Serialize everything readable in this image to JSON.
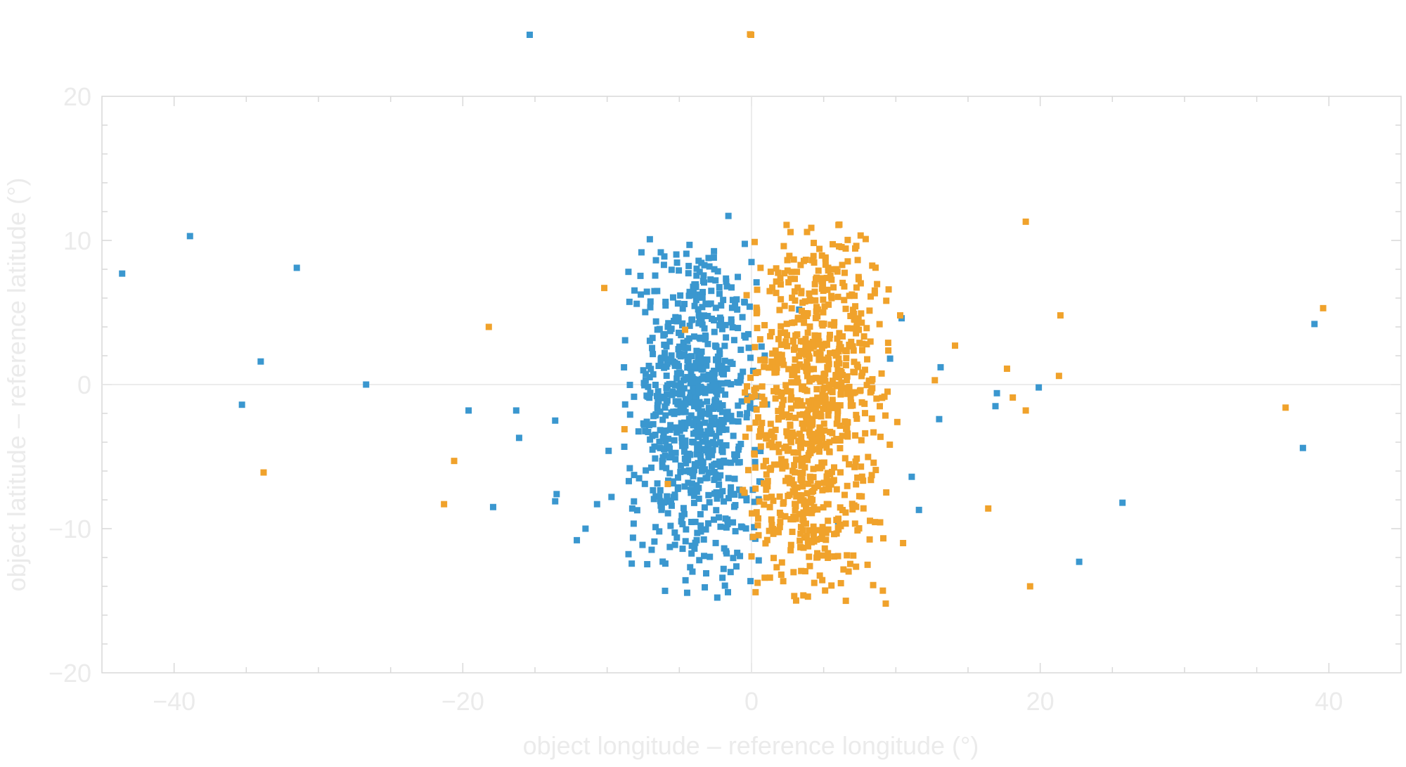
{
  "chart_data": {
    "type": "scatter",
    "xlabel": "object longitude – reference longitude (°)",
    "ylabel": "object latitude – reference latitude (°)",
    "xlim": [
      -45,
      45
    ],
    "ylim": [
      -20,
      20
    ],
    "x_ticks": [
      -40,
      -20,
      0,
      20,
      40
    ],
    "y_ticks": [
      -20,
      -10,
      0,
      10,
      20
    ],
    "x_tick_labels": [
      "−40",
      "−20",
      "0",
      "20",
      "40"
    ],
    "y_tick_labels": [
      "−20",
      "−10",
      "0",
      "10",
      "20"
    ],
    "grid": false,
    "zero_lines": true,
    "legend": "top",
    "series": [
      {
        "color": "#3a97cf",
        "outliers": [
          [
            -43.6,
            7.7
          ],
          [
            -38.9,
            10.3
          ],
          [
            -31.5,
            8.1
          ],
          [
            -34.0,
            1.6
          ],
          [
            -35.3,
            -1.4
          ],
          [
            -26.7,
            0.0
          ],
          [
            -19.6,
            -1.8
          ],
          [
            -16.3,
            -1.8
          ],
          [
            -16.1,
            -3.7
          ],
          [
            -17.9,
            -8.5
          ],
          [
            -13.6,
            -2.5
          ],
          [
            -13.5,
            -7.6
          ],
          [
            -13.6,
            -8.1
          ],
          [
            -11.5,
            -10.0
          ],
          [
            -12.1,
            -10.8
          ],
          [
            -10.7,
            -8.3
          ],
          [
            -9.9,
            -4.6
          ],
          [
            -9.7,
            -7.8
          ],
          [
            -8.5,
            -6.7
          ],
          [
            10.4,
            4.6
          ],
          [
            9.6,
            1.8
          ],
          [
            11.1,
            -6.4
          ],
          [
            11.6,
            -8.7
          ],
          [
            13.1,
            1.2
          ],
          [
            13.0,
            -2.4
          ],
          [
            17.0,
            -0.6
          ],
          [
            16.9,
            -1.5
          ],
          [
            19.9,
            -0.2
          ],
          [
            22.7,
            -12.3
          ],
          [
            25.7,
            -8.2
          ],
          [
            38.2,
            -4.4
          ],
          [
            39.0,
            4.2
          ],
          [
            -1.6,
            11.7
          ],
          [
            0.0,
            8.5
          ],
          [
            6.0,
            -9.5
          ],
          [
            3.3,
            5.2
          ],
          [
            -0.8,
            -11.9
          ],
          [
            0.5,
            -12.2
          ]
        ],
        "cluster": {
          "seed": 7,
          "count": 780,
          "x_min": -9.0,
          "x_max": 1.2,
          "x_mode": -3.8,
          "y_min": -15.4,
          "y_max": 10.5,
          "y_mode": -1.2
        }
      },
      {
        "color": "#f0a22b",
        "outliers": [
          [
            -33.8,
            -6.1
          ],
          [
            -18.2,
            4.0
          ],
          [
            -20.6,
            -5.3
          ],
          [
            -21.3,
            -8.3
          ],
          [
            -10.2,
            6.7
          ],
          [
            -8.8,
            -3.1
          ],
          [
            -5.8,
            -6.9
          ],
          [
            -4.6,
            3.8
          ],
          [
            12.7,
            0.3
          ],
          [
            14.1,
            2.7
          ],
          [
            17.7,
            1.1
          ],
          [
            18.1,
            -0.9
          ],
          [
            19.0,
            -1.8
          ],
          [
            19.0,
            11.3
          ],
          [
            21.4,
            4.8
          ],
          [
            21.3,
            0.6
          ],
          [
            16.4,
            -8.6
          ],
          [
            19.3,
            -14.0
          ],
          [
            37.0,
            -1.6
          ],
          [
            39.6,
            5.3
          ],
          [
            10.5,
            -11.0
          ],
          [
            10.1,
            -2.6
          ],
          [
            9.3,
            -15.2
          ],
          [
            9.1,
            -14.3
          ],
          [
            9.5,
            6.6
          ],
          [
            10.3,
            4.8
          ],
          [
            -0.1,
            24.3
          ]
        ],
        "cluster": {
          "seed": 13,
          "count": 880,
          "x_min": -1.0,
          "x_max": 10.0,
          "x_mode": 4.0,
          "y_min": -15.4,
          "y_max": 11.9,
          "y_mode": -0.8
        }
      }
    ]
  }
}
